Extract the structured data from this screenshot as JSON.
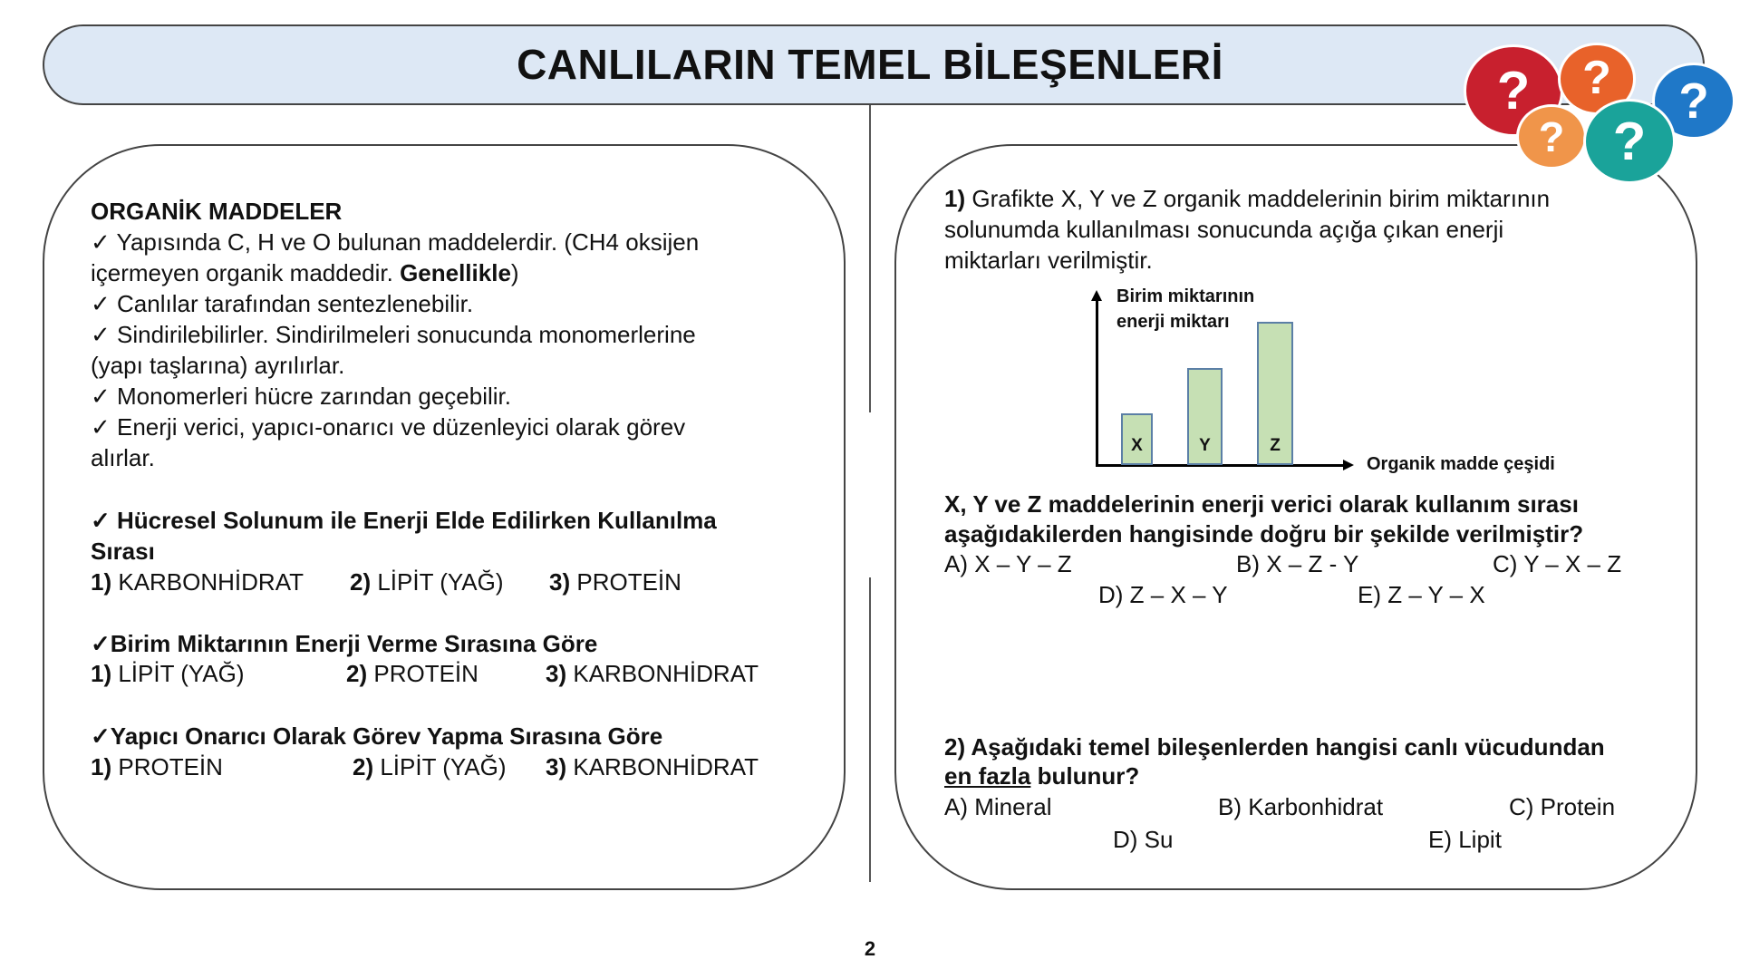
{
  "header": {
    "title": "CANLILARIN TEMEL BİLEŞENLERİ"
  },
  "left": {
    "heading": "ORGANİK MADDELER",
    "lines": [
      "✓ Yapısında C, H ve O bulunan maddelerdir. (CH4 oksijen",
      "içermeyen organik maddedir. ",
      "Genellikle",
      ")",
      "✓ Canlılar tarafından sentezlenebilir.",
      "✓ Sindirilebilirler. Sindirilmeleri sonucunda monomerlerine",
      "(yapı taşlarına) ayrılırlar.",
      "✓ Monomerleri  hücre zarından geçebilir.",
      "✓ Enerji verici, yapıcı-onarıcı ve düzenleyici olarak görev",
      "alırlar."
    ],
    "sections": [
      {
        "title": "✓ Hücresel Solunum ile Enerji Elde Edilirken Kullanılma",
        "title2": "Sırası",
        "items": [
          {
            "n": "1)",
            "t": " KARBONHİDRAT"
          },
          {
            "n": "2)",
            "t": " LİPİT (YAĞ)"
          },
          {
            "n": "3)",
            "t": " PROTEİN"
          }
        ]
      },
      {
        "title": "✓Birim Miktarının Enerji Verme Sırasına Göre",
        "items": [
          {
            "n": "1)",
            "t": " LİPİT (YAĞ)"
          },
          {
            "n": "2)",
            "t": " PROTEİN"
          },
          {
            "n": "3)",
            "t": " KARBONHİDRAT"
          }
        ]
      },
      {
        "title": "✓Yapıcı Onarıcı Olarak Görev Yapma Sırasına Göre",
        "items": [
          {
            "n": "1)",
            "t": " PROTEİN"
          },
          {
            "n": "2)",
            "t": " LİPİT (YAĞ)"
          },
          {
            "n": "3)",
            "t": " KARBONHİDRAT"
          }
        ]
      }
    ]
  },
  "right": {
    "q1": {
      "num": "1)",
      "lines": [
        " Grafikte X, Y ve Z organik maddelerinin birim miktarının",
        "solunumda kullanılması sonucunda açığa çıkan enerji",
        "miktarları verilmiştir."
      ],
      "question": [
        "X, Y ve Z maddelerinin enerji verici olarak kullanım sırası",
        "aşağıdakilerden hangisinde doğru bir şekilde verilmiştir?"
      ],
      "options": [
        "A) X – Y – Z",
        "B) X – Z - Y",
        "C) Y – X – Z",
        "D) Z – X – Y",
        "E) Z – Y – X"
      ]
    },
    "q2": {
      "question1": "2) Aşağıdaki temel bileşenlerden hangisi canlı vücudundan",
      "underlined": "en fazla",
      "question2": " bulunur?",
      "options": [
        "A) Mineral",
        "B) Karbonhidrat",
        "C) Protein",
        "D) Su",
        "E) Lipit"
      ]
    }
  },
  "chart_data": {
    "type": "bar",
    "categories": [
      "X",
      "Y",
      "Z"
    ],
    "values": [
      36,
      68,
      100
    ],
    "ylim": [
      0,
      119
    ],
    "ylabel": "Birim miktarının enerji miktarı",
    "ylabel_lines": [
      "Birim miktarının",
      "enerji miktarı"
    ],
    "xlabel": "Organik madde çeşidi",
    "grid": false,
    "bar_color": "#c6e0b4",
    "bar_border": "#5b7fa6"
  },
  "decor": {
    "bubbles": [
      {
        "icon": "question-bubble-icon",
        "color": "#c8202e",
        "glyph": "?"
      },
      {
        "icon": "question-bubble-icon",
        "color": "#e8622a",
        "glyph": "?"
      },
      {
        "icon": "question-bubble-icon",
        "color": "#f0954a",
        "glyph": "?"
      },
      {
        "icon": "question-bubble-icon",
        "color": "#1aa39a",
        "glyph": "?"
      },
      {
        "icon": "question-bubble-icon",
        "color": "#1f78c8",
        "glyph": "?"
      }
    ]
  },
  "footer": {
    "page": "2"
  }
}
